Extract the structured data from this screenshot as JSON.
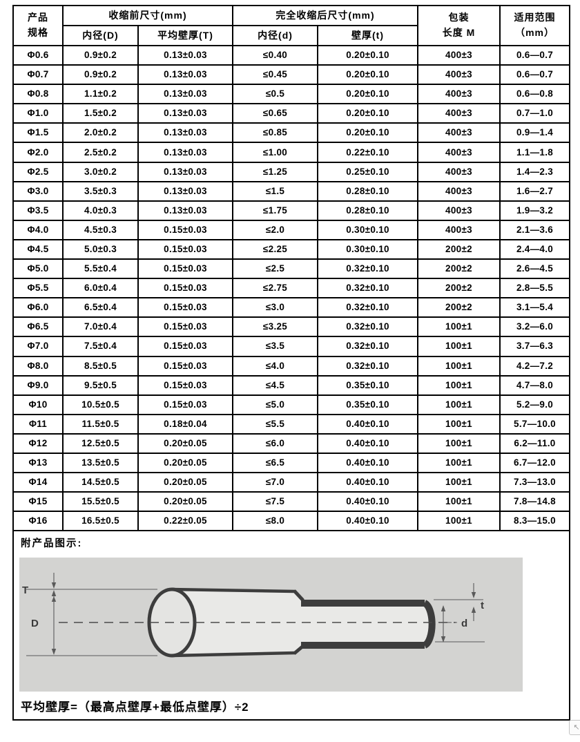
{
  "table": {
    "header": {
      "product": "产品\n规格",
      "before_group": "收缩前尺寸(mm)",
      "after_group": "完全收缩后尺寸(mm)",
      "inner_before": "内径(D)",
      "wall_before": "平均壁厚(T)",
      "inner_after": "内径(d)",
      "wall_after": "壁厚(t)",
      "packing": "包装\n长度  M",
      "range": "适用范围\n（mm）"
    },
    "rows": [
      [
        "Φ0.6",
        "0.9±0.2",
        "0.13±0.03",
        "≤0.40",
        "0.20±0.10",
        "400±3",
        "0.6—0.7"
      ],
      [
        "Φ0.7",
        "0.9±0.2",
        "0.13±0.03",
        "≤0.45",
        "0.20±0.10",
        "400±3",
        "0.6—0.7"
      ],
      [
        "Φ0.8",
        "1.1±0.2",
        "0.13±0.03",
        "≤0.5",
        "0.20±0.10",
        "400±3",
        "0.6—0.8"
      ],
      [
        "Φ1.0",
        "1.5±0.2",
        "0.13±0.03",
        "≤0.65",
        "0.20±0.10",
        "400±3",
        "0.7—1.0"
      ],
      [
        "Φ1.5",
        "2.0±0.2",
        "0.13±0.03",
        "≤0.85",
        "0.20±0.10",
        "400±3",
        "0.9—1.4"
      ],
      [
        "Φ2.0",
        "2.5±0.2",
        "0.13±0.03",
        "≤1.00",
        "0.22±0.10",
        "400±3",
        "1.1—1.8"
      ],
      [
        "Φ2.5",
        "3.0±0.2",
        "0.13±0.03",
        "≤1.25",
        "0.25±0.10",
        "400±3",
        "1.4—2.3"
      ],
      [
        "Φ3.0",
        "3.5±0.3",
        "0.13±0.03",
        "≤1.5",
        "0.28±0.10",
        "400±3",
        "1.6—2.7"
      ],
      [
        "Φ3.5",
        "4.0±0.3",
        "0.13±0.03",
        "≤1.75",
        "0.28±0.10",
        "400±3",
        "1.9—3.2"
      ],
      [
        "Φ4.0",
        "4.5±0.3",
        "0.15±0.03",
        "≤2.0",
        "0.30±0.10",
        "400±3",
        "2.1—3.6"
      ],
      [
        "Φ4.5",
        "5.0±0.3",
        "0.15±0.03",
        "≤2.25",
        "0.30±0.10",
        "200±2",
        "2.4—4.0"
      ],
      [
        "Φ5.0",
        "5.5±0.4",
        "0.15±0.03",
        "≤2.5",
        "0.32±0.10",
        "200±2",
        "2.6—4.5"
      ],
      [
        "Φ5.5",
        "6.0±0.4",
        "0.15±0.03",
        "≤2.75",
        "0.32±0.10",
        "200±2",
        "2.8—5.5"
      ],
      [
        "Φ6.0",
        "6.5±0.4",
        "0.15±0.03",
        "≤3.0",
        "0.32±0.10",
        "200±2",
        "3.1—5.4"
      ],
      [
        "Φ6.5",
        "7.0±0.4",
        "0.15±0.03",
        "≤3.25",
        "0.32±0.10",
        "100±1",
        "3.2—6.0"
      ],
      [
        "Φ7.0",
        "7.5±0.4",
        "0.15±0.03",
        "≤3.5",
        "0.32±0.10",
        "100±1",
        "3.7—6.3"
      ],
      [
        "Φ8.0",
        "8.5±0.5",
        "0.15±0.03",
        "≤4.0",
        "0.32±0.10",
        "100±1",
        "4.2—7.2"
      ],
      [
        "Φ9.0",
        "9.5±0.5",
        "0.15±0.03",
        "≤4.5",
        "0.35±0.10",
        "100±1",
        "4.7—8.0"
      ],
      [
        "Φ10",
        "10.5±0.5",
        "0.15±0.03",
        "≤5.0",
        "0.35±0.10",
        "100±1",
        "5.2—9.0"
      ],
      [
        "Φ11",
        "11.5±0.5",
        "0.18±0.04",
        "≤5.5",
        "0.40±0.10",
        "100±1",
        "5.7—10.0"
      ],
      [
        "Φ12",
        "12.5±0.5",
        "0.20±0.05",
        "≤6.0",
        "0.40±0.10",
        "100±1",
        "6.2—11.0"
      ],
      [
        "Φ13",
        "13.5±0.5",
        "0.20±0.05",
        "≤6.5",
        "0.40±0.10",
        "100±1",
        "6.7—12.0"
      ],
      [
        "Φ14",
        "14.5±0.5",
        "0.20±0.05",
        "≤7.0",
        "0.40±0.10",
        "100±1",
        "7.3—13.0"
      ],
      [
        "Φ15",
        "15.5±0.5",
        "0.20±0.05",
        "≤7.5",
        "0.40±0.10",
        "100±1",
        "7.8—14.8"
      ],
      [
        "Φ16",
        "16.5±0.5",
        "0.22±0.05",
        "≤8.0",
        "0.40±0.10",
        "100±1",
        "8.3—15.0"
      ]
    ],
    "column_names": [
      "spec",
      "inner-d-before",
      "wall-t-before",
      "inner-d-after",
      "wall-t-after",
      "packing-length",
      "applicable-range"
    ]
  },
  "notes": {
    "diagram_label": "附产品图示:",
    "formula": "平均壁厚=（最高点壁厚+最低点壁厚）÷2"
  },
  "diagram": {
    "labels": {
      "T": "T",
      "D": "D",
      "t": "t",
      "d": "d"
    },
    "bg": "#d3d3d1"
  },
  "corner_button": {
    "icon": "↖"
  },
  "colors": {
    "border": "#000000",
    "text": "#000000",
    "diagram_bg": "#d3d3d1",
    "tube_line": "#3d3d3d",
    "dim_line": "#5a5a5a"
  }
}
